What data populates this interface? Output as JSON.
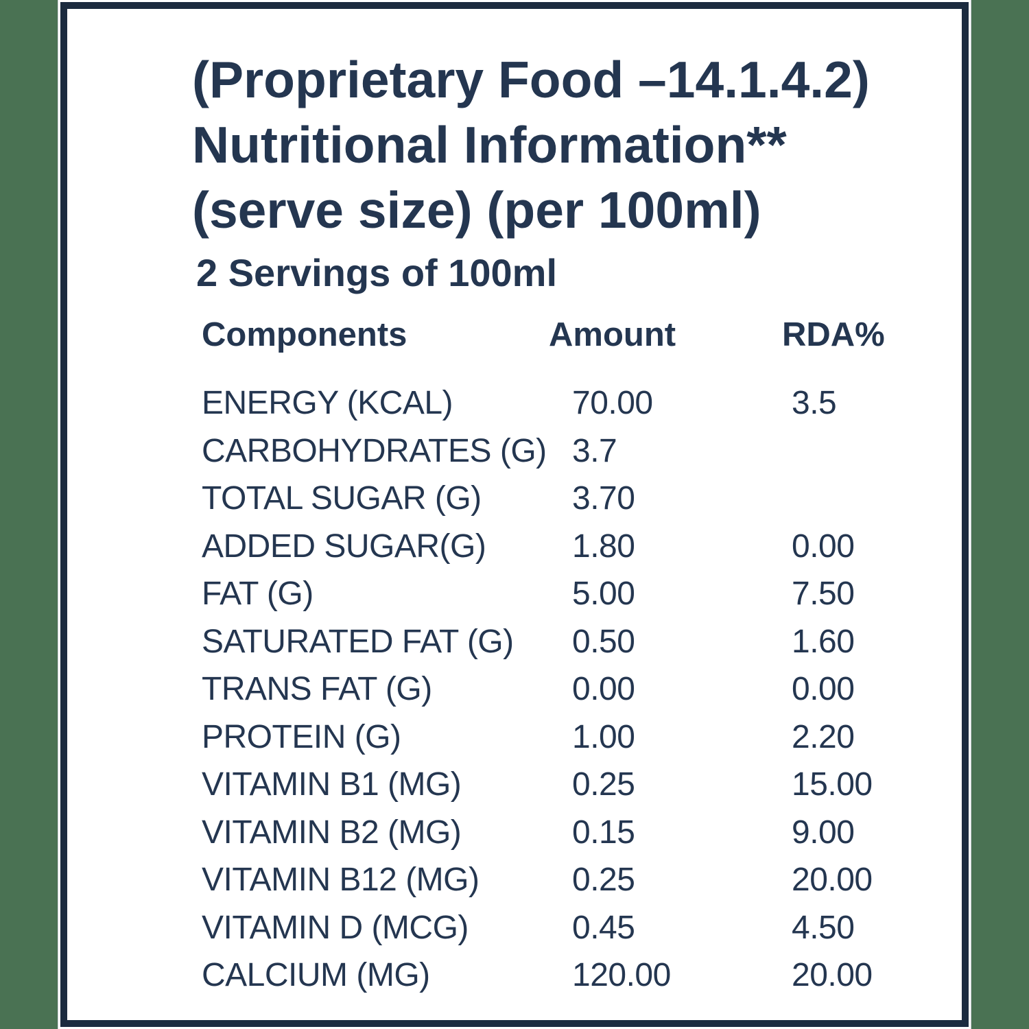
{
  "page": {
    "background_color": "#4a7253",
    "card_background": "#ffffff",
    "card_border_color": "#1c2b3f",
    "text_color": "#243650"
  },
  "label": {
    "title_line1": "(Proprietary Food –14.1.4.2)",
    "title_line2": "Nutritional Information**",
    "title_line3": "(serve size) (per 100ml)",
    "servings": "2 Servings of 100ml",
    "columns": {
      "component": "Components",
      "amount": "Amount",
      "rda": "RDA%"
    },
    "rows": [
      {
        "component": "ENERGY (KCAL)",
        "amount": "70.00",
        "rda": "3.5"
      },
      {
        "component": "CARBOHYDRATES (G)",
        "amount": "3.7",
        "rda": ""
      },
      {
        "component": "TOTAL SUGAR (G)",
        "amount": "3.70",
        "rda": ""
      },
      {
        "component": "ADDED SUGAR(G)",
        "amount": "1.80",
        "rda": "0.00"
      },
      {
        "component": "FAT (G)",
        "amount": "5.00",
        "rda": "7.50"
      },
      {
        "component": "SATURATED FAT (G)",
        "amount": "0.50",
        "rda": "1.60"
      },
      {
        "component": "TRANS FAT (G)",
        "amount": "0.00",
        "rda": "0.00"
      },
      {
        "component": "PROTEIN (G)",
        "amount": "1.00",
        "rda": "2.20"
      },
      {
        "component": "VITAMIN B1 (MG)",
        "amount": "0.25",
        "rda": "15.00"
      },
      {
        "component": "VITAMIN B2 (MG)",
        "amount": "0.15",
        "rda": "9.00"
      },
      {
        "component": "VITAMIN B12 (MG)",
        "amount": "0.25",
        "rda": "20.00"
      },
      {
        "component": "VITAMIN D (MCG)",
        "amount": "0.45",
        "rda": "4.50"
      },
      {
        "component": "CALCIUM (MG)",
        "amount": "120.00",
        "rda": "20.00"
      }
    ]
  }
}
